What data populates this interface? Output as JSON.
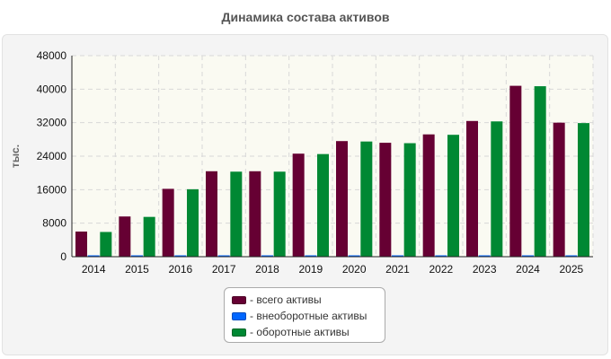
{
  "chart_data": {
    "type": "bar",
    "title": "Динамика состава активов",
    "ylabel": "тыс.",
    "xlabel": "",
    "categories": [
      "2014",
      "2015",
      "2016",
      "2017",
      "2018",
      "2019",
      "2020",
      "2021",
      "2022",
      "2023",
      "2024",
      "2025"
    ],
    "ylim": [
      0,
      48000
    ],
    "yticks": [
      0,
      8000,
      16000,
      24000,
      32000,
      40000,
      48000
    ],
    "grid": true,
    "legend_position": "bottom",
    "series": [
      {
        "name": "- всего активы",
        "color": "#660033",
        "values": [
          6000,
          9600,
          16200,
          20400,
          20400,
          24600,
          27600,
          27200,
          29200,
          32400,
          40800,
          32000
        ]
      },
      {
        "name": "- внеоборотные активы",
        "color": "#0066ff",
        "values": [
          100,
          100,
          100,
          100,
          100,
          100,
          100,
          100,
          100,
          100,
          100,
          100
        ]
      },
      {
        "name": "- оборотные активы",
        "color": "#008833",
        "values": [
          5900,
          9500,
          16100,
          20300,
          20300,
          24500,
          27500,
          27100,
          29100,
          32300,
          40700,
          31900
        ]
      }
    ]
  }
}
